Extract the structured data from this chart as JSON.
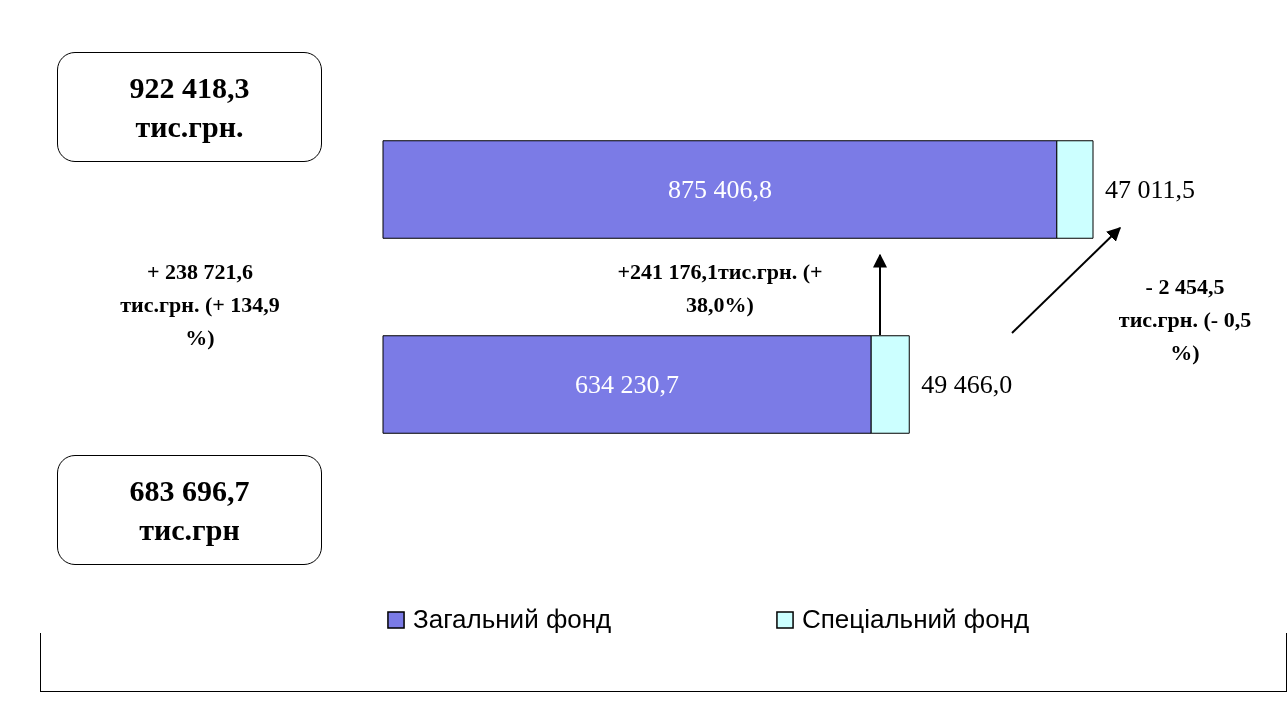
{
  "chart_data": {
    "type": "bar",
    "orientation": "horizontal",
    "stacked": true,
    "categories": [
      null,
      null
    ],
    "tick_labels": false,
    "grid": false,
    "legend": "bottom",
    "series": [
      {
        "name": "Загальний фонд",
        "color": "#7b7be6",
        "values": [
          875406.8,
          634230.7
        ],
        "value_labels": [
          "875 406,8",
          "634 230,7"
        ]
      },
      {
        "name": "Спеціальний фонд",
        "color": "#ccffff",
        "values": [
          47011.5,
          49466.0
        ],
        "value_labels": [
          "47 011,5",
          "49 466,0"
        ]
      }
    ],
    "annotations": [
      "922 418,3 тис.грн.",
      "683 696,7 тис.грн",
      "+ 238 721,6 тис.грн. (+ 134,9 %)",
      "+241 176,1тис.грн. (+ 38,0%)",
      "- 2 454,5 тис.грн. (- 0,5 %)"
    ]
  }
}
